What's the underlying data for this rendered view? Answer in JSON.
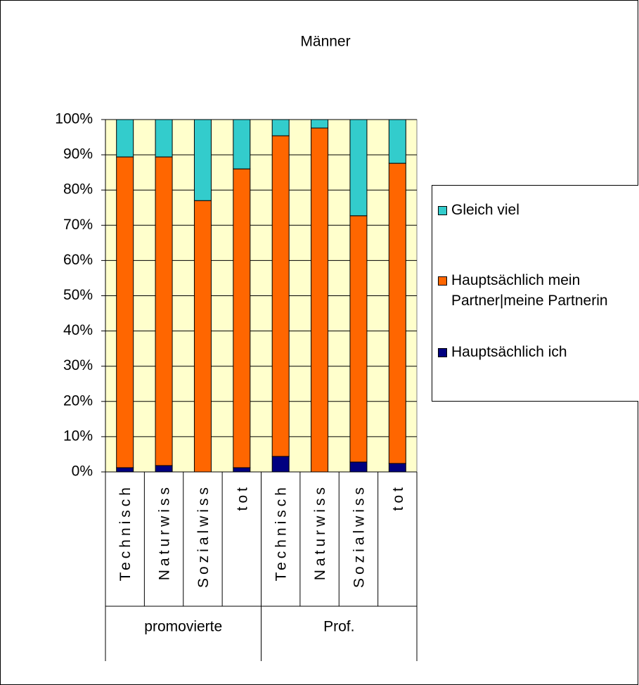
{
  "chart_data": {
    "type": "stacked_bar_100",
    "title": "Männer",
    "groups": [
      {
        "label": "promovierte",
        "categories": [
          "Technisch",
          "Naturwiss",
          "Sozialwiss",
          "tot"
        ]
      },
      {
        "label": "Prof.",
        "categories": [
          "Technisch",
          "Naturwiss",
          "Sozialwiss",
          "tot"
        ]
      }
    ],
    "series": [
      {
        "name": "Hauptsächlich ich",
        "color": "#000080",
        "values": [
          1.2,
          1.8,
          0,
          1.2,
          4.4,
          0,
          2.8,
          2.4
        ]
      },
      {
        "name": "Hauptsächlich mein Partner|meine Partnerin",
        "color": "#ff6600",
        "values": [
          88.2,
          87.6,
          77.0,
          84.8,
          91.0,
          97.6,
          69.9,
          85.2
        ]
      },
      {
        "name": "Gleich viel",
        "color": "#33cccc",
        "values": [
          10.6,
          10.6,
          23.0,
          14.0,
          4.6,
          2.4,
          27.3,
          12.4
        ]
      }
    ],
    "ylim": [
      0,
      100
    ],
    "yticks": [
      {
        "value": 0,
        "label": "0%"
      },
      {
        "value": 10,
        "label": "10%"
      },
      {
        "value": 20,
        "label": "20%"
      },
      {
        "value": 30,
        "label": "30%"
      },
      {
        "value": 40,
        "label": "40%"
      },
      {
        "value": 50,
        "label": "50%"
      },
      {
        "value": 60,
        "label": "60%"
      },
      {
        "value": 70,
        "label": "70%"
      },
      {
        "value": 80,
        "label": "80%"
      },
      {
        "value": 90,
        "label": "90%"
      },
      {
        "value": 100,
        "label": "100%"
      }
    ],
    "grid": true,
    "plot_background": "#ffffcc",
    "legend": "right"
  }
}
